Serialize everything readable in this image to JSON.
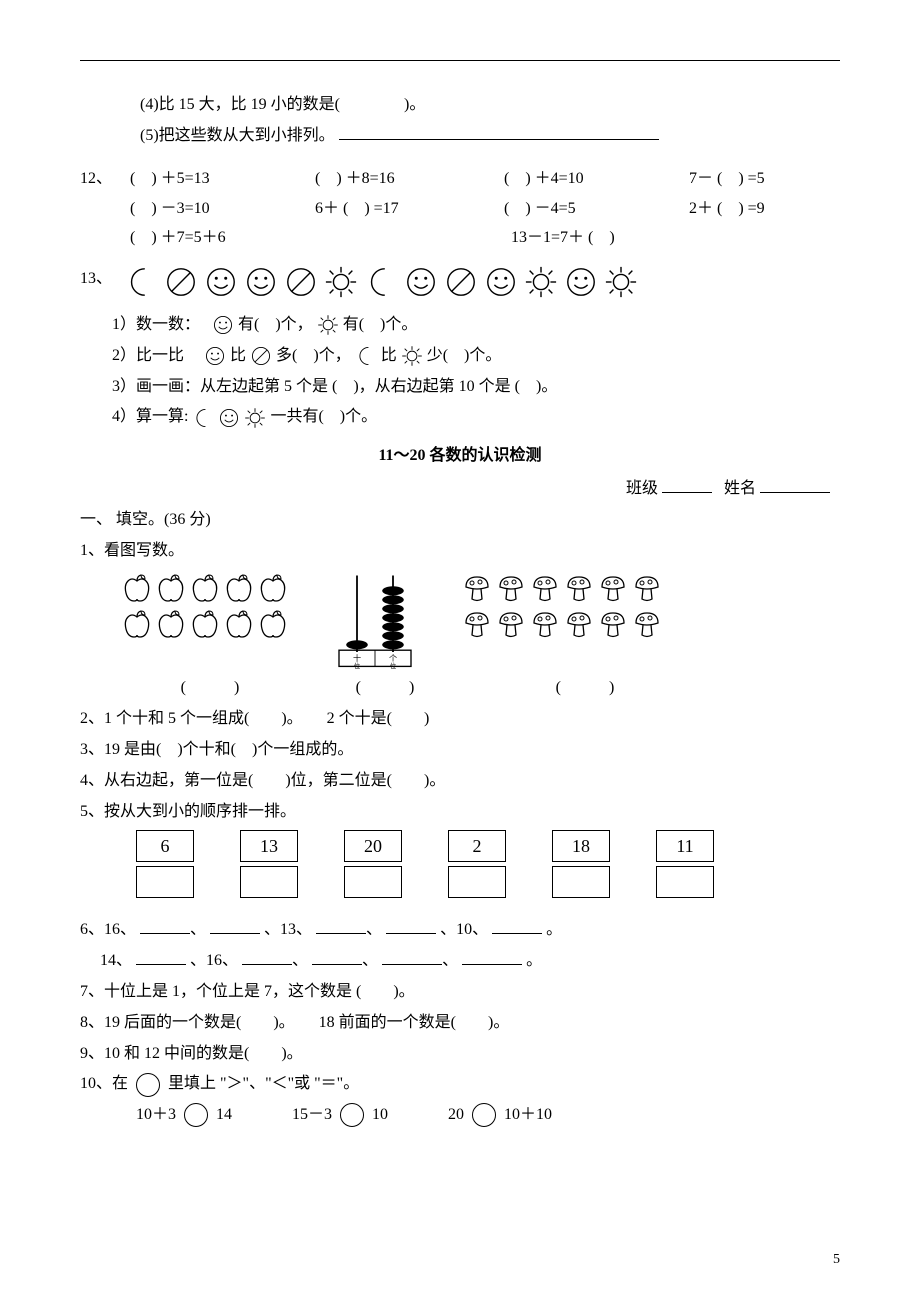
{
  "top_section": {
    "q4": "(4)比 15 大，比 19 小的数是(　　　　)。",
    "q5_pre": "(5)把这些数从大到小排列。"
  },
  "q12": {
    "label": "12、",
    "cells": [
      "(　) ＋5=13",
      "(　) ＋8=16",
      "(　) ＋4=10",
      "7－ (　) =5",
      "(　) －3=10",
      "6＋ (　) =17",
      "(　) －4=5",
      "2＋ (　) =9",
      "(　) ＋7=5＋6",
      "13－1=7＋ (　)"
    ]
  },
  "q13": {
    "label": "13、",
    "icons": [
      "moon",
      "forbid",
      "smile",
      "smile",
      "forbid",
      "sun",
      "moon",
      "smile",
      "forbid",
      "smile",
      "sun",
      "smile",
      "sun"
    ],
    "sub1_a": "1）数一数：　",
    "sub1_b": "有(　)个，",
    "sub1_c": " 有(　)个。",
    "sub2_a": "2）比一比　",
    "sub2_b": "比 ",
    "sub2_c": "多(　)个，",
    "sub2_d": "比 ",
    "sub2_e": " 少(　)个。",
    "sub3": "3）画一画：从左边起第 5 个是 (　)，从右边起第 10 个是 (　)。",
    "sub4_a": "4）算一算:",
    "sub4_b": " 一共有(　)个。"
  },
  "title2": "11～20 各数的认识检测",
  "header2": {
    "class_label": "班级",
    "name_label": "姓名"
  },
  "section1_header": "一、 填空。(36 分)",
  "p1": {
    "label": "1、看图写数。",
    "paren": "(　　　)"
  },
  "p2": "2、1 个十和 5 个一组成(　　)。　　2 个十是(　　)",
  "p3": "3、19 是由(　)个十和(　)个一组成的。",
  "p4": "4、从右边起，第一位是(　　)位，第二位是(　　)。",
  "p5": {
    "label": "5、按从大到小的顺序排一排。",
    "boxes_top": [
      "6",
      "13",
      "20",
      "2",
      "18",
      "11"
    ]
  },
  "p6_l1_a": "6、16、",
  "p6_l1_b": "、13、",
  "p6_l1_c": "、10、",
  "p6_l1_end": "。",
  "p6_l2_a": "　 14、",
  "p6_l2_b": "、16、",
  "p6_l2_c": "。",
  "p7": "7、十位上是 1，个位上是 7，这个数是 (　　)。",
  "p8": "8、19 后面的一个数是(　　)。　　18 前面的一个数是(　　)。",
  "p9": "9、10 和 12 中间的数是(　　)。",
  "p10": {
    "label_a": "10、在 ",
    "label_b": " 里填上 \"＞\"、\"＜\"或 \"＝\"。",
    "expr1_a": "10＋3 ",
    "expr1_b": " 14",
    "expr2_a": "15－3",
    "expr2_b": " 10",
    "expr3_a": "20 ",
    "expr3_b": "10＋10"
  },
  "page_number": "5",
  "colors": {
    "text": "#000000",
    "bg": "#ffffff",
    "rule": "#000000"
  },
  "abacus_left_beads": 1,
  "abacus_right_beads": 7,
  "apple_count": 10,
  "mushroom_count": 12
}
